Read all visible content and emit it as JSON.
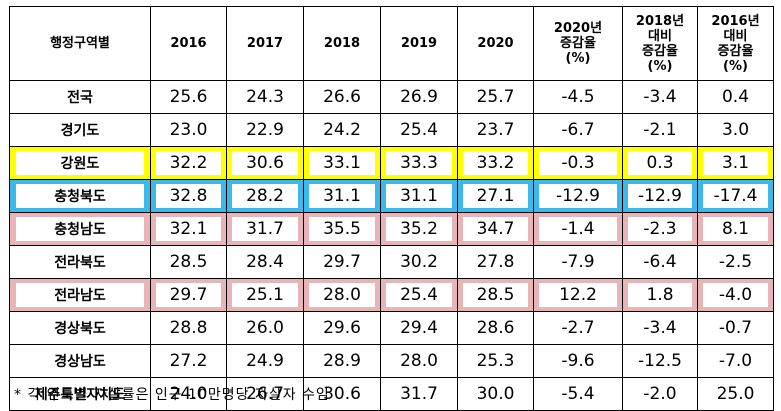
{
  "table": {
    "headers": {
      "region": "행정구역별",
      "y2016": "2016",
      "y2017": "2017",
      "y2018": "2018",
      "y2019": "2019",
      "y2020": "2020",
      "rate2020": [
        "2020년",
        "증감율",
        "(%)"
      ],
      "rate2018": [
        "2018년",
        "대비",
        "증감율",
        "(%)"
      ],
      "rate2016": [
        "2016년",
        "대비",
        "증감율",
        "(%)"
      ]
    },
    "rows": [
      {
        "region": "전국",
        "v2016": "25.6",
        "v2017": "24.3",
        "v2018": "26.6",
        "v2019": "26.9",
        "v2020": "25.7",
        "r2020": "-4.5",
        "r2018": "-3.4",
        "r2016": "0.4",
        "highlight": "none"
      },
      {
        "region": "경기도",
        "v2016": "23.0",
        "v2017": "22.9",
        "v2018": "24.2",
        "v2019": "25.4",
        "v2020": "23.7",
        "r2020": "-6.7",
        "r2018": "-2.1",
        "r2016": "3.0",
        "highlight": "none"
      },
      {
        "region": "강원도",
        "v2016": "32.2",
        "v2017": "30.6",
        "v2018": "33.1",
        "v2019": "33.3",
        "v2020": "33.2",
        "r2020": "-0.3",
        "r2018": "0.3",
        "r2016": "3.1",
        "highlight": "yellow"
      },
      {
        "region": "충청북도",
        "v2016": "32.8",
        "v2017": "28.2",
        "v2018": "31.1",
        "v2019": "31.1",
        "v2020": "27.1",
        "r2020": "-12.9",
        "r2018": "-12.9",
        "r2016": "-17.4",
        "highlight": "blue"
      },
      {
        "region": "충청남도",
        "v2016": "32.1",
        "v2017": "31.7",
        "v2018": "35.5",
        "v2019": "35.2",
        "v2020": "34.7",
        "r2020": "-1.4",
        "r2018": "-2.3",
        "r2016": "8.1",
        "highlight": "pink"
      },
      {
        "region": "전라북도",
        "v2016": "28.5",
        "v2017": "28.4",
        "v2018": "29.7",
        "v2019": "30.2",
        "v2020": "27.8",
        "r2020": "-7.9",
        "r2018": "-6.4",
        "r2016": "-2.5",
        "highlight": "none"
      },
      {
        "region": "전라남도",
        "v2016": "29.7",
        "v2017": "25.1",
        "v2018": "28.0",
        "v2019": "25.4",
        "v2020": "28.5",
        "r2020": "12.2",
        "r2018": "1.8",
        "r2016": "-4.0",
        "highlight": "pink"
      },
      {
        "region": "경상북도",
        "v2016": "28.8",
        "v2017": "26.0",
        "v2018": "29.6",
        "v2019": "29.4",
        "v2020": "28.6",
        "r2020": "-2.7",
        "r2018": "-3.4",
        "r2016": "-0.7",
        "highlight": "none"
      },
      {
        "region": "경상남도",
        "v2016": "27.2",
        "v2017": "24.9",
        "v2018": "28.9",
        "v2019": "28.0",
        "v2020": "25.3",
        "r2020": "-9.6",
        "r2018": "-12.5",
        "r2016": "-7.0",
        "highlight": "none"
      },
      {
        "region": "제주특별자치도",
        "v2016": "24.0",
        "v2017": "26.7",
        "v2018": "30.6",
        "v2019": "31.7",
        "v2020": "30.0",
        "r2020": "-5.4",
        "r2018": "-2.0",
        "r2016": "25.0",
        "highlight": "none"
      }
    ]
  },
  "colors": {
    "yellow": "#ffff00",
    "blue": "#3cb9ea",
    "pink": "#e8b4b8"
  },
  "footnote": "* 각 연도별 자살률은 인구 10만명당 자살자 수임"
}
